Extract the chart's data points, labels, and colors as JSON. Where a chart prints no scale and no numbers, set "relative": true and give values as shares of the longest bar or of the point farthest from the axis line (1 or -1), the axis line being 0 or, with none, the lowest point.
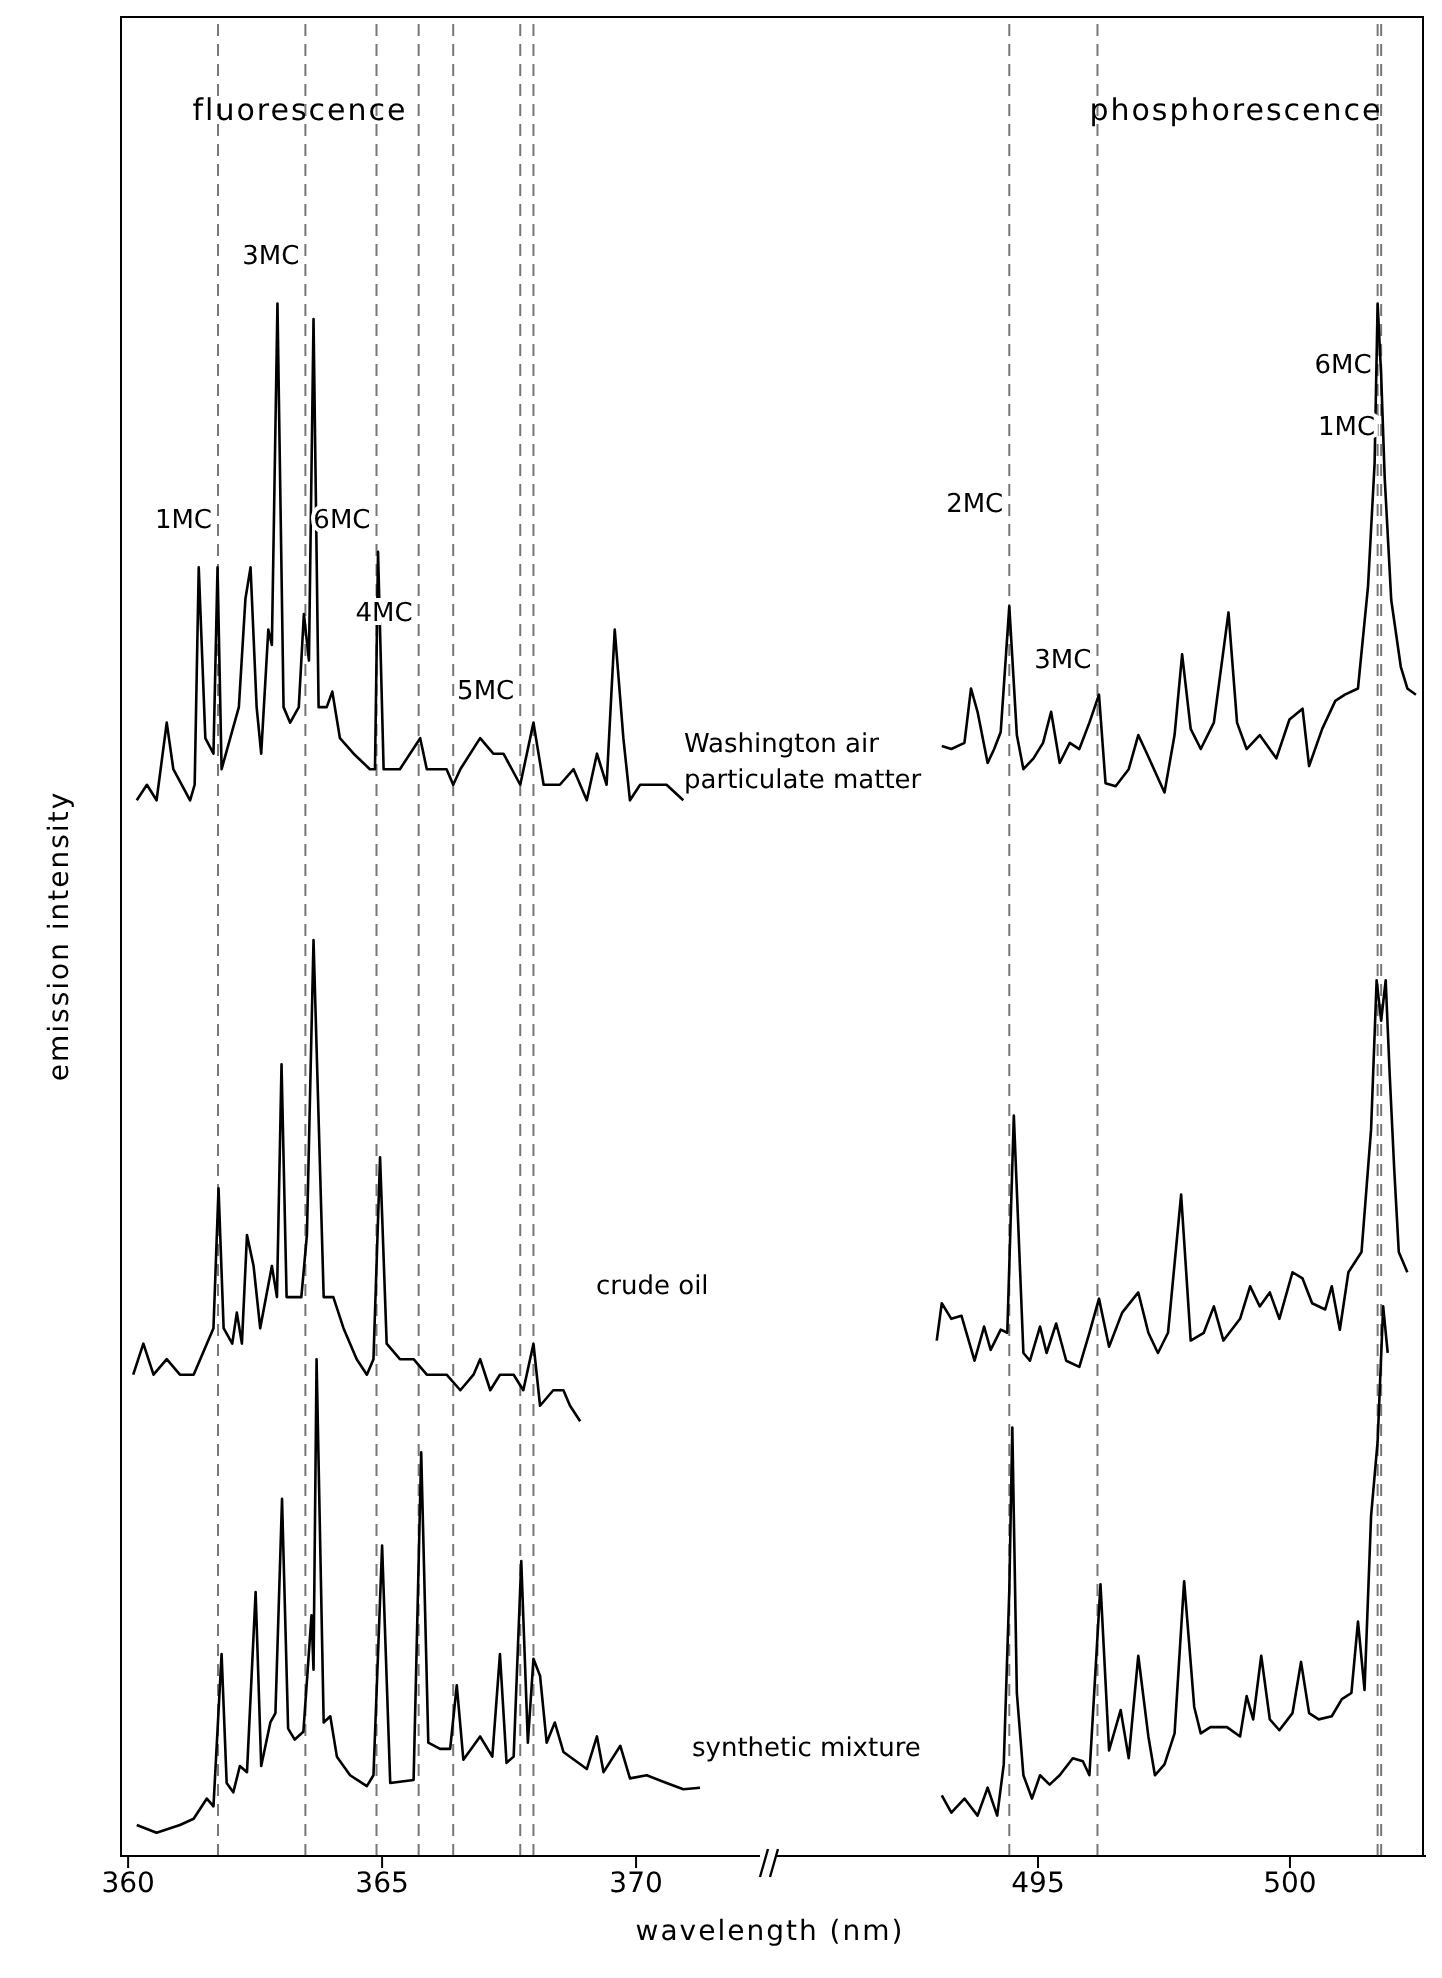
{
  "chart_data": [
    {
      "type": "line",
      "relative": true,
      "xlabel": "wavelength (nm)",
      "ylabel": "emission intensity",
      "xlim": [
        359.84,
        372.44
      ],
      "xticks": [
        360,
        365,
        370
      ],
      "annotations": [
        "fluorescence",
        {
          "text": "1MC",
          "x": 361.77,
          "y": 0.86
        },
        {
          "text": "3MC",
          "x": 363.49,
          "y": 1.03
        },
        {
          "text": "6MC",
          "x": 364.89,
          "y": 0.86
        },
        {
          "text": "4MC",
          "x": 365.72,
          "y": 0.8
        },
        {
          "text": "5MC",
          "x": 367.72,
          "y": 0.75
        }
      ],
      "ref_lines": [
        {
          "axis": "x",
          "value": 361.77,
          "line_style": "dashed",
          "color": "#777777"
        },
        {
          "axis": "x",
          "value": 363.49,
          "line_style": "dashed",
          "color": "#777777"
        },
        {
          "axis": "x",
          "value": 364.89,
          "line_style": "dashed",
          "color": "#777777"
        },
        {
          "axis": "x",
          "value": 365.72,
          "line_style": "dashed",
          "color": "#777777"
        },
        {
          "axis": "x",
          "value": 366.4,
          "line_style": "dashed",
          "color": "#777777"
        },
        {
          "axis": "x",
          "value": 367.72,
          "line_style": "dashed",
          "color": "#777777"
        },
        {
          "axis": "x",
          "value": 367.98,
          "line_style": "dashed",
          "color": "#777777"
        }
      ],
      "series": [
        {
          "name": "Washington air particulate matter",
          "color": "#000000",
          "x": [
            360.17,
            360.37,
            360.56,
            360.76,
            360.89,
            361.22,
            361.31,
            361.39,
            361.52,
            361.68,
            361.76,
            361.84,
            362.01,
            362.18,
            362.31,
            362.41,
            362.53,
            362.62,
            362.76,
            362.83,
            362.94,
            363.06,
            363.19,
            363.36,
            363.46,
            363.56,
            363.65,
            363.75,
            363.91,
            364.02,
            364.17,
            364.44,
            364.76,
            364.86,
            364.92,
            365.03,
            365.35,
            365.75,
            365.88,
            366.27,
            366.4,
            366.54,
            366.93,
            367.19,
            367.39,
            367.72,
            367.98,
            368.18,
            368.5,
            368.77,
            369.03,
            369.23,
            369.42,
            369.58,
            369.75,
            369.88,
            370.08,
            370.34,
            370.6,
            370.93
          ],
          "values": [
            0.68,
            0.69,
            0.68,
            0.73,
            0.7,
            0.68,
            0.69,
            0.83,
            0.72,
            0.71,
            0.83,
            0.7,
            0.72,
            0.74,
            0.81,
            0.83,
            0.74,
            0.71,
            0.79,
            0.78,
            1.0,
            0.74,
            0.73,
            0.74,
            0.8,
            0.77,
            0.99,
            0.74,
            0.74,
            0.75,
            0.72,
            0.71,
            0.7,
            0.7,
            0.84,
            0.7,
            0.7,
            0.72,
            0.7,
            0.7,
            0.69,
            0.7,
            0.72,
            0.71,
            0.71,
            0.69,
            0.73,
            0.69,
            0.69,
            0.7,
            0.68,
            0.71,
            0.69,
            0.79,
            0.72,
            0.68,
            0.69,
            0.69,
            0.69,
            0.68
          ]
        },
        {
          "name": "crude oil",
          "color": "#000000",
          "x": [
            360.1,
            360.3,
            360.5,
            360.76,
            361.02,
            361.29,
            361.42,
            361.55,
            361.68,
            361.78,
            361.88,
            362.05,
            362.14,
            362.24,
            362.34,
            362.47,
            362.6,
            362.83,
            362.93,
            363.02,
            363.12,
            363.28,
            363.41,
            363.52,
            363.65,
            363.85,
            364.04,
            364.24,
            364.5,
            364.7,
            364.83,
            364.96,
            365.09,
            365.35,
            365.62,
            365.88,
            366.27,
            366.54,
            366.8,
            366.93,
            367.13,
            367.32,
            367.59,
            367.78,
            367.98,
            368.11,
            368.37,
            368.57,
            368.7,
            368.9
          ],
          "values": [
            0.31,
            0.33,
            0.31,
            0.32,
            0.31,
            0.31,
            0.32,
            0.33,
            0.34,
            0.43,
            0.34,
            0.33,
            0.35,
            0.33,
            0.4,
            0.38,
            0.34,
            0.38,
            0.36,
            0.51,
            0.36,
            0.36,
            0.36,
            0.4,
            0.59,
            0.36,
            0.36,
            0.34,
            0.32,
            0.31,
            0.32,
            0.45,
            0.33,
            0.32,
            0.32,
            0.31,
            0.31,
            0.3,
            0.31,
            0.32,
            0.3,
            0.31,
            0.31,
            0.3,
            0.33,
            0.29,
            0.3,
            0.3,
            0.29,
            0.28
          ]
        },
        {
          "name": "synthetic mixture",
          "color": "#000000",
          "x": [
            360.17,
            360.56,
            361.02,
            361.29,
            361.55,
            361.68,
            361.84,
            361.94,
            362.07,
            362.2,
            362.34,
            362.51,
            362.62,
            362.8,
            362.9,
            363.03,
            363.15,
            363.28,
            363.45,
            363.61,
            363.65,
            363.71,
            363.85,
            363.98,
            364.11,
            364.37,
            364.7,
            364.83,
            365.0,
            365.16,
            365.62,
            365.77,
            365.91,
            366.14,
            366.34,
            366.47,
            366.6,
            366.93,
            367.17,
            367.32,
            367.45,
            367.59,
            367.74,
            367.87,
            367.98,
            368.11,
            368.24,
            368.4,
            368.57,
            369.03,
            369.23,
            369.36,
            369.69,
            369.88,
            370.21,
            370.6,
            370.93,
            371.26
          ],
          "values": [
            0.02,
            0.015,
            0.02,
            0.024,
            0.037,
            0.032,
            0.13,
            0.047,
            0.041,
            0.058,
            0.054,
            0.17,
            0.058,
            0.086,
            0.092,
            0.23,
            0.082,
            0.075,
            0.08,
            0.155,
            0.12,
            0.32,
            0.086,
            0.09,
            0.064,
            0.052,
            0.045,
            0.052,
            0.2,
            0.047,
            0.049,
            0.26,
            0.073,
            0.069,
            0.069,
            0.11,
            0.062,
            0.077,
            0.064,
            0.13,
            0.06,
            0.064,
            0.19,
            0.073,
            0.127,
            0.116,
            0.073,
            0.086,
            0.067,
            0.056,
            0.077,
            0.054,
            0.071,
            0.05,
            0.052,
            0.047,
            0.043,
            0.044
          ]
        }
      ]
    },
    {
      "type": "line",
      "relative": true,
      "xlim": [
        489.8,
        502.7
      ],
      "xticks": [
        495,
        500
      ],
      "annotations": [
        "phosphorescence",
        {
          "text": "2MC",
          "x": 494.43,
          "y": 0.87
        },
        {
          "text": "3MC",
          "x": 496.18,
          "y": 0.77
        },
        {
          "text": "6MC",
          "x": 501.74,
          "y": 0.96
        },
        {
          "text": "1MC",
          "x": 501.81,
          "y": 0.92
        }
      ],
      "ref_lines": [
        {
          "axis": "x",
          "value": 494.43,
          "line_style": "dashed",
          "color": "#777777"
        },
        {
          "axis": "x",
          "value": 496.18,
          "line_style": "dashed",
          "color": "#777777"
        },
        {
          "axis": "x",
          "value": 501.74,
          "line_style": "dashed",
          "color": "#777777"
        },
        {
          "axis": "x",
          "value": 501.81,
          "line_style": "dashed",
          "color": "#777777"
        }
      ],
      "series": [
        {
          "color": "#000000",
          "x": [
            493.09,
            493.28,
            493.54,
            493.67,
            493.8,
            494.0,
            494.13,
            494.26,
            494.43,
            494.58,
            494.71,
            494.91,
            495.1,
            495.26,
            495.43,
            495.63,
            495.82,
            496.02,
            496.21,
            496.34,
            496.54,
            496.8,
            496.99,
            497.19,
            497.51,
            497.71,
            497.86,
            498.03,
            498.23,
            498.49,
            498.78,
            498.95,
            499.14,
            499.4,
            499.73,
            499.99,
            500.25,
            500.38,
            500.64,
            500.9,
            501.09,
            501.35,
            501.55,
            501.68,
            501.74,
            501.81,
            501.88,
            502.01,
            502.2,
            502.33,
            502.5
          ],
          "values": [
            0.715,
            0.713,
            0.717,
            0.752,
            0.737,
            0.704,
            0.713,
            0.724,
            0.805,
            0.722,
            0.7,
            0.707,
            0.717,
            0.737,
            0.704,
            0.717,
            0.713,
            0.73,
            0.748,
            0.691,
            0.689,
            0.7,
            0.722,
            0.708,
            0.685,
            0.722,
            0.774,
            0.726,
            0.713,
            0.73,
            0.801,
            0.73,
            0.713,
            0.722,
            0.707,
            0.732,
            0.739,
            0.702,
            0.726,
            0.744,
            0.748,
            0.752,
            0.818,
            0.897,
            1.0,
            0.954,
            0.888,
            0.809,
            0.766,
            0.752,
            0.748
          ]
        },
        {
          "color": "#000000",
          "x": [
            492.99,
            493.09,
            493.28,
            493.48,
            493.74,
            493.93,
            494.06,
            494.26,
            494.39,
            494.52,
            494.71,
            494.84,
            495.04,
            495.17,
            495.36,
            495.56,
            495.82,
            496.02,
            496.21,
            496.41,
            496.67,
            496.99,
            497.19,
            497.38,
            497.58,
            497.84,
            498.03,
            498.29,
            498.49,
            498.68,
            499.01,
            499.21,
            499.4,
            499.6,
            499.79,
            500.05,
            500.25,
            500.44,
            500.7,
            500.83,
            500.99,
            501.16,
            501.42,
            501.61,
            501.72,
            501.81,
            501.9,
            501.98,
            502.07,
            502.16,
            502.33
          ],
          "values": [
            0.332,
            0.356,
            0.346,
            0.348,
            0.319,
            0.341,
            0.326,
            0.339,
            0.337,
            0.477,
            0.324,
            0.319,
            0.341,
            0.324,
            0.343,
            0.319,
            0.315,
            0.337,
            0.359,
            0.328,
            0.35,
            0.363,
            0.337,
            0.324,
            0.337,
            0.426,
            0.332,
            0.337,
            0.354,
            0.332,
            0.346,
            0.367,
            0.354,
            0.363,
            0.346,
            0.376,
            0.372,
            0.356,
            0.352,
            0.367,
            0.339,
            0.376,
            0.389,
            0.468,
            0.564,
            0.538,
            0.564,
            0.503,
            0.442,
            0.389,
            0.376
          ]
        },
        {
          "color": "#000000",
          "x": [
            493.09,
            493.28,
            493.54,
            493.8,
            494.0,
            494.19,
            494.32,
            494.43,
            494.49,
            494.58,
            494.71,
            494.88,
            495.04,
            495.23,
            495.43,
            495.69,
            495.89,
            496.02,
            496.24,
            496.41,
            496.64,
            496.8,
            496.99,
            497.19,
            497.32,
            497.51,
            497.71,
            497.9,
            498.1,
            498.23,
            498.42,
            498.75,
            499.01,
            499.14,
            499.27,
            499.43,
            499.6,
            499.79,
            500.05,
            500.22,
            500.38,
            500.57,
            500.83,
            501.03,
            501.22,
            501.35,
            501.48,
            501.61,
            501.74,
            501.85,
            501.94
          ],
          "values": [
            0.039,
            0.028,
            0.037,
            0.026,
            0.044,
            0.026,
            0.059,
            0.171,
            0.276,
            0.105,
            0.052,
            0.037,
            0.052,
            0.046,
            0.052,
            0.063,
            0.061,
            0.052,
            0.175,
            0.068,
            0.094,
            0.063,
            0.129,
            0.077,
            0.052,
            0.059,
            0.079,
            0.177,
            0.096,
            0.079,
            0.083,
            0.083,
            0.077,
            0.103,
            0.088,
            0.129,
            0.088,
            0.081,
            0.092,
            0.125,
            0.092,
            0.088,
            0.09,
            0.101,
            0.105,
            0.151,
            0.107,
            0.219,
            0.267,
            0.354,
            0.324
          ]
        }
      ]
    }
  ]
}
